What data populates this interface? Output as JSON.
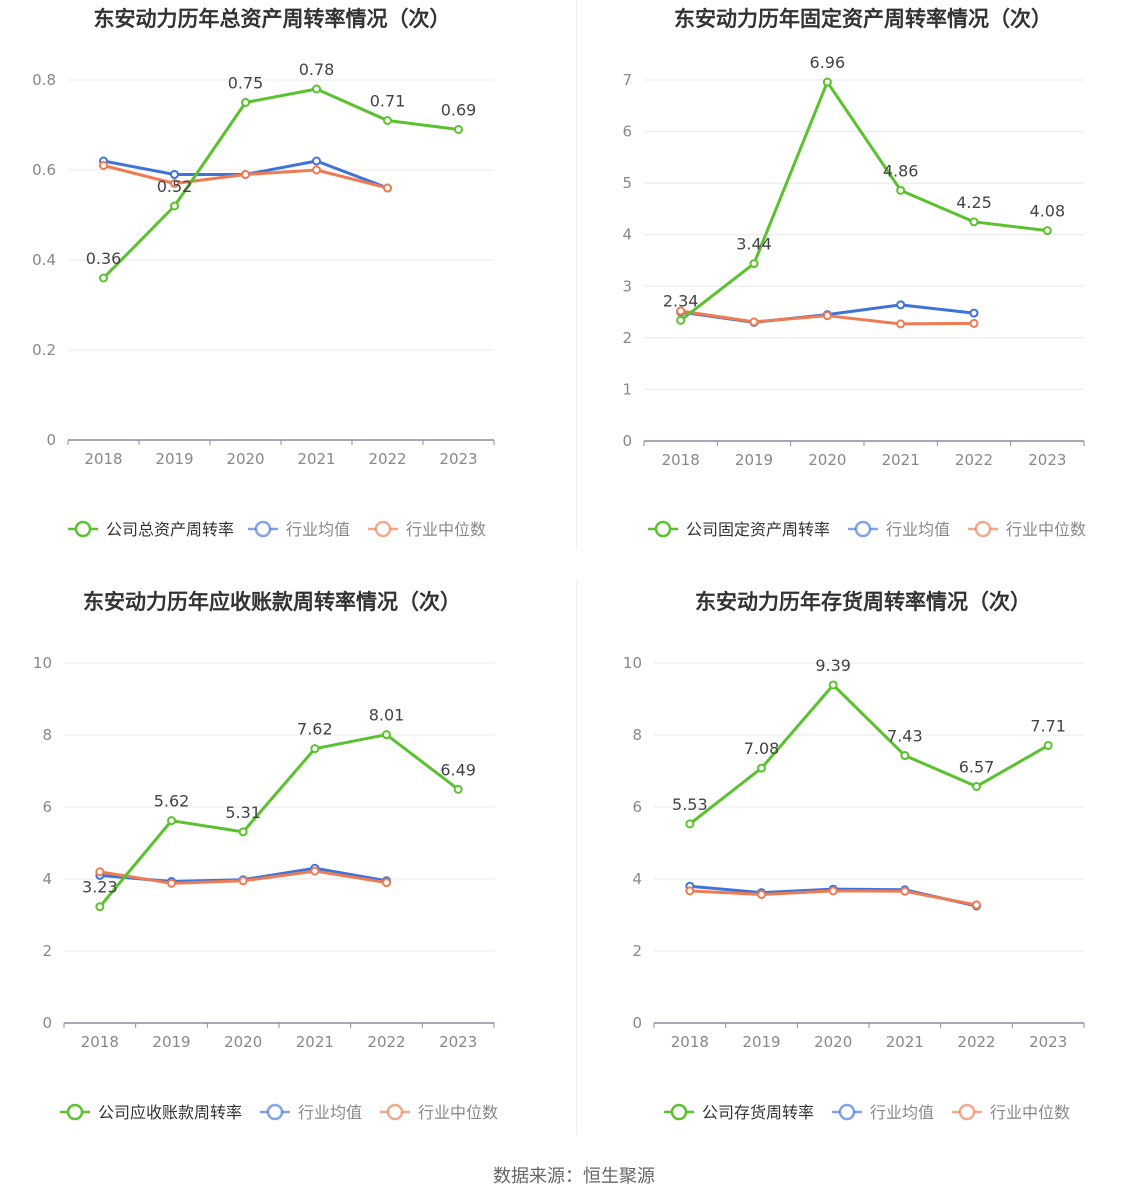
{
  "source": "数据来源：恒生聚源",
  "colors": {
    "company": "#5ac22e",
    "avg": "#3f73d9",
    "median": "#ee7b52",
    "grid": "#e8e8ec",
    "axis": "#8c8ca0",
    "tick": "#888888",
    "label": "#444444",
    "title": "#333333"
  },
  "chart_data": [
    {
      "type": "line",
      "title": "东安动力历年总资产周转率情况（次）",
      "categories": [
        "2018",
        "2019",
        "2020",
        "2021",
        "2022",
        "2023"
      ],
      "ylim": [
        0,
        0.8
      ],
      "yticks": [
        "0",
        "0.2",
        "0.4",
        "0.6",
        "0.8"
      ],
      "grid": true,
      "legend_position": "bottom",
      "series": [
        {
          "name": "公司总资产周转率",
          "role": "company",
          "values": [
            0.36,
            0.52,
            0.75,
            0.78,
            0.71,
            0.69
          ],
          "labels": [
            "0.36",
            "0.52",
            "0.75",
            "0.78",
            "0.71",
            "0.69"
          ]
        },
        {
          "name": "行业均值",
          "role": "avg",
          "values": [
            0.62,
            0.59,
            0.59,
            0.62,
            0.56,
            null
          ]
        },
        {
          "name": "行业中位数",
          "role": "median",
          "values": [
            0.61,
            0.57,
            0.59,
            0.6,
            0.56,
            null
          ]
        }
      ]
    },
    {
      "type": "line",
      "title": "东安动力历年固定资产周转率情况（次）",
      "categories": [
        "2018",
        "2019",
        "2020",
        "2021",
        "2022",
        "2023"
      ],
      "ylim": [
        0,
        7
      ],
      "yticks": [
        "0",
        "1",
        "2",
        "3",
        "4",
        "5",
        "6",
        "7"
      ],
      "grid": true,
      "legend_position": "bottom",
      "series": [
        {
          "name": "公司固定资产周转率",
          "role": "company",
          "values": [
            2.34,
            3.44,
            6.96,
            4.86,
            4.25,
            4.08
          ],
          "labels": [
            "2.34",
            "3.44",
            "6.96",
            "4.86",
            "4.25",
            "4.08"
          ]
        },
        {
          "name": "行业均值",
          "role": "avg",
          "values": [
            2.5,
            2.3,
            2.45,
            2.64,
            2.48,
            null
          ]
        },
        {
          "name": "行业中位数",
          "role": "median",
          "values": [
            2.52,
            2.31,
            2.43,
            2.27,
            2.28,
            null
          ]
        }
      ]
    },
    {
      "type": "line",
      "title": "东安动力历年应收账款周转率情况（次）",
      "categories": [
        "2018",
        "2019",
        "2020",
        "2021",
        "2022",
        "2023"
      ],
      "ylim": [
        0,
        10
      ],
      "yticks": [
        "0",
        "2",
        "4",
        "6",
        "8",
        "10"
      ],
      "grid": true,
      "legend_position": "bottom",
      "series": [
        {
          "name": "公司应收账款周转率",
          "role": "company",
          "values": [
            3.23,
            5.62,
            5.31,
            7.62,
            8.01,
            6.49
          ],
          "labels": [
            "3.23",
            "5.62",
            "5.31",
            "7.62",
            "8.01",
            "6.49"
          ]
        },
        {
          "name": "行业均值",
          "role": "avg",
          "values": [
            4.1,
            3.93,
            3.98,
            4.3,
            3.95,
            null
          ]
        },
        {
          "name": "行业中位数",
          "role": "median",
          "values": [
            4.2,
            3.88,
            3.95,
            4.22,
            3.9,
            null
          ]
        }
      ]
    },
    {
      "type": "line",
      "title": "东安动力历年存货周转率情况（次）",
      "categories": [
        "2018",
        "2019",
        "2020",
        "2021",
        "2022",
        "2023"
      ],
      "ylim": [
        0,
        10
      ],
      "yticks": [
        "0",
        "2",
        "4",
        "6",
        "8",
        "10"
      ],
      "grid": true,
      "legend_position": "bottom",
      "series": [
        {
          "name": "公司存货周转率",
          "role": "company",
          "values": [
            5.53,
            7.08,
            9.39,
            7.43,
            6.57,
            7.71
          ],
          "labels": [
            "5.53",
            "7.08",
            "9.39",
            "7.43",
            "6.57",
            "7.71"
          ]
        },
        {
          "name": "行业均值",
          "role": "avg",
          "values": [
            3.8,
            3.62,
            3.72,
            3.7,
            3.25,
            null
          ]
        },
        {
          "name": "行业中位数",
          "role": "median",
          "values": [
            3.67,
            3.57,
            3.67,
            3.66,
            3.28,
            null
          ]
        }
      ]
    }
  ]
}
